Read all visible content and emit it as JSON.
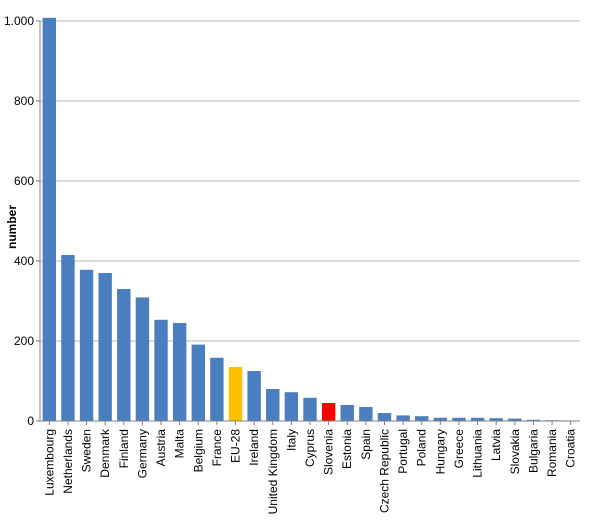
{
  "chart_data": {
    "type": "bar",
    "xlabel": "",
    "ylabel": "number",
    "ylim": [
      0,
      1000
    ],
    "yticks": [
      0,
      200,
      400,
      600,
      800,
      1000
    ],
    "ytick_labels": [
      "0",
      "200",
      "400",
      "600",
      "800",
      "1.000"
    ],
    "grid": true,
    "legend": "none",
    "categories": [
      "Luxembourg",
      "Netherlands",
      "Sweden",
      "Denmark",
      "Finland",
      "Germany",
      "Austria",
      "Malta",
      "Belgium",
      "France",
      "EU-28",
      "Ireland",
      "United Kingdom",
      "Italy",
      "Cyprus",
      "Slovenia",
      "Estonia",
      "Spain",
      "Czech Republic",
      "Portugal",
      "Poland",
      "Hungary",
      "Greece",
      "Lithuania",
      "Latvia",
      "Slovakia",
      "Bulgaria",
      "Romania",
      "Croatia"
    ],
    "values": [
      1008,
      415,
      378,
      370,
      330,
      309,
      253,
      245,
      191,
      158,
      135,
      125,
      80,
      72,
      58,
      45,
      40,
      35,
      20,
      14,
      12,
      8,
      8,
      8,
      7,
      6,
      3,
      2,
      1
    ],
    "colors": {
      "default": "#4a7ebf",
      "EU-28": "#ffc000",
      "Slovenia": "#ff0000"
    },
    "grid_color": "#b7b7b7",
    "axis_color": "#7f7f7f"
  }
}
